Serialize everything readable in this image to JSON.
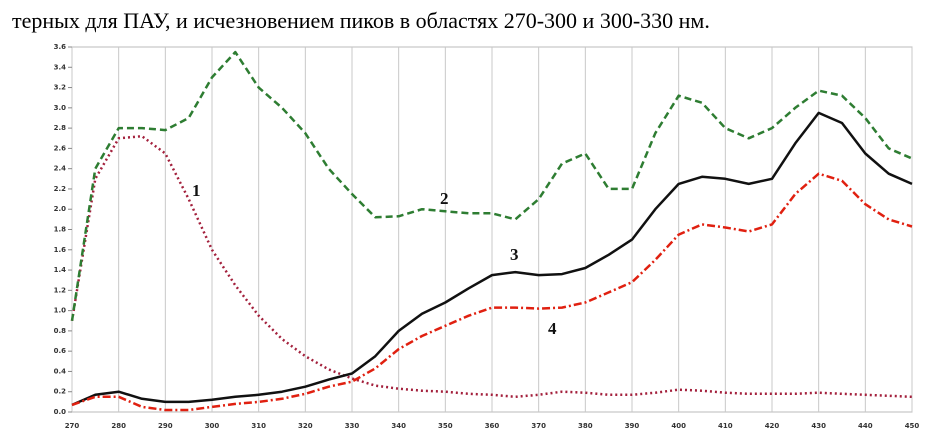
{
  "caption": "терных для ПАУ, и исчезновением пиков в областях 270-300 и 300-330 нм.",
  "chart_data": {
    "type": "line",
    "x": [
      270,
      275,
      280,
      285,
      290,
      295,
      300,
      305,
      310,
      315,
      320,
      325,
      330,
      335,
      340,
      345,
      350,
      355,
      360,
      365,
      370,
      375,
      380,
      385,
      390,
      395,
      400,
      405,
      410,
      415,
      420,
      425,
      430,
      435,
      440,
      445,
      450
    ],
    "xlim": [
      270,
      450
    ],
    "xticks": [
      270,
      280,
      290,
      300,
      310,
      320,
      330,
      340,
      350,
      360,
      370,
      380,
      390,
      400,
      410,
      420,
      430,
      440,
      450
    ],
    "ylim": [
      0,
      3.6
    ],
    "yticks": [
      {
        "value": 0,
        "label": "0.0"
      },
      0.2,
      0.4,
      0.6,
      0.8,
      {
        "value": 1,
        "label": "1.0"
      },
      1.2,
      1.4,
      1.6,
      1.8,
      {
        "value": 2,
        "label": "2.0"
      },
      2.2,
      2.4,
      2.6,
      2.8,
      {
        "value": 3,
        "label": "3.0"
      },
      3.2,
      3.4,
      3.6
    ],
    "grid": true,
    "series": [
      {
        "name": "1",
        "color": "#a3203c",
        "linestyle": "dotted",
        "values": [
          0.9,
          2.3,
          2.7,
          2.72,
          2.55,
          2.1,
          1.6,
          1.25,
          0.95,
          0.72,
          0.55,
          0.42,
          0.33,
          0.26,
          0.23,
          0.21,
          0.2,
          0.18,
          0.17,
          0.15,
          0.17,
          0.2,
          0.19,
          0.17,
          0.17,
          0.19,
          0.22,
          0.21,
          0.19,
          0.18,
          0.18,
          0.18,
          0.19,
          0.18,
          0.17,
          0.16,
          0.15
        ]
      },
      {
        "name": "2",
        "color": "#2e7d32",
        "linestyle": "dashed",
        "values": [
          0.9,
          2.4,
          2.8,
          2.8,
          2.78,
          2.9,
          3.3,
          3.55,
          3.2,
          3.0,
          2.75,
          2.4,
          2.15,
          1.92,
          1.93,
          2.0,
          1.98,
          1.96,
          1.96,
          1.9,
          2.1,
          2.45,
          2.55,
          2.2,
          2.2,
          2.75,
          3.12,
          3.05,
          2.8,
          2.7,
          2.8,
          3.0,
          3.17,
          3.12,
          2.9,
          2.6,
          2.5
        ]
      },
      {
        "name": "3",
        "color": "#111111",
        "linestyle": "solid",
        "values": [
          0.07,
          0.17,
          0.2,
          0.13,
          0.1,
          0.1,
          0.12,
          0.15,
          0.17,
          0.2,
          0.25,
          0.32,
          0.38,
          0.55,
          0.8,
          0.97,
          1.08,
          1.22,
          1.35,
          1.38,
          1.35,
          1.36,
          1.42,
          1.55,
          1.7,
          2.0,
          2.25,
          2.32,
          2.3,
          2.25,
          2.3,
          2.65,
          2.95,
          2.85,
          2.55,
          2.35,
          2.25
        ]
      },
      {
        "name": "4",
        "color": "#e02010",
        "linestyle": "dashdot",
        "values": [
          0.07,
          0.15,
          0.15,
          0.05,
          0.02,
          0.02,
          0.05,
          0.08,
          0.1,
          0.13,
          0.18,
          0.25,
          0.3,
          0.43,
          0.62,
          0.75,
          0.85,
          0.95,
          1.03,
          1.03,
          1.02,
          1.03,
          1.08,
          1.18,
          1.28,
          1.5,
          1.75,
          1.85,
          1.82,
          1.78,
          1.85,
          2.15,
          2.35,
          2.28,
          2.05,
          1.9,
          1.83
        ]
      }
    ]
  }
}
